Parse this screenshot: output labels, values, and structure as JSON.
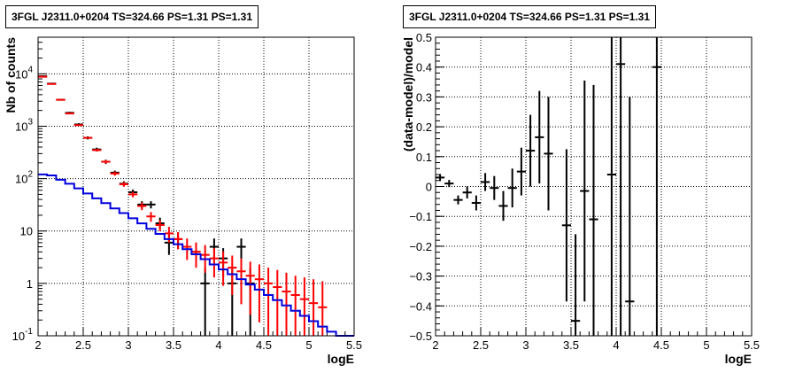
{
  "chart_data": [
    {
      "type": "scatter",
      "title": "3FGL J2311.0+0204 TS=324.66 PS=1.31 PS=1.31",
      "xlabel": "logE",
      "ylabel": "Nb of counts",
      "xlim": [
        2,
        5.5
      ],
      "ylim": [
        0.1,
        50000
      ],
      "yscale": "log",
      "grid": true,
      "x_ticks": [
        "2",
        "2.5",
        "3",
        "3.5",
        "4",
        "4.5",
        "5",
        "5.5"
      ],
      "y_ticks": [
        {
          "value": 0.1,
          "base": "10",
          "exp": "-1"
        },
        {
          "value": 1,
          "base": "1",
          "exp": ""
        },
        {
          "value": 10,
          "base": "10",
          "exp": ""
        },
        {
          "value": 100,
          "base": "10",
          "exp": "2"
        },
        {
          "value": 1000,
          "base": "10",
          "exp": "3"
        },
        {
          "value": 10000,
          "base": "10",
          "exp": "4"
        }
      ],
      "bin_width": 0.1,
      "series": [
        {
          "color": "#000000",
          "kind": "data-points",
          "points": [
            {
              "x": 2.05,
              "y": 9000,
              "lo": 8800,
              "hi": 9200
            },
            {
              "x": 2.15,
              "y": 6500,
              "lo": 6350,
              "hi": 6650
            },
            {
              "x": 2.25,
              "y": 3200,
              "lo": 3100,
              "hi": 3300
            },
            {
              "x": 2.35,
              "y": 1800,
              "lo": 1720,
              "hi": 1880
            },
            {
              "x": 2.45,
              "y": 1080,
              "lo": 1020,
              "hi": 1140
            },
            {
              "x": 2.55,
              "y": 600,
              "lo": 560,
              "hi": 640
            },
            {
              "x": 2.65,
              "y": 360,
              "lo": 330,
              "hi": 390
            },
            {
              "x": 2.75,
              "y": 210,
              "lo": 190,
              "hi": 230
            },
            {
              "x": 2.85,
              "y": 130,
              "lo": 118,
              "hi": 142
            },
            {
              "x": 2.95,
              "y": 80,
              "lo": 71,
              "hi": 89
            },
            {
              "x": 3.05,
              "y": 55,
              "lo": 48,
              "hi": 62
            },
            {
              "x": 3.15,
              "y": 32,
              "lo": 27,
              "hi": 37
            },
            {
              "x": 3.25,
              "y": 32,
              "lo": 27,
              "hi": 37
            },
            {
              "x": 3.35,
              "y": 14,
              "lo": 11,
              "hi": 18
            },
            {
              "x": 3.45,
              "y": 6,
              "lo": 3.5,
              "hi": 8.5
            },
            {
              "x": 3.55,
              "y": 7,
              "lo": 4.5,
              "hi": 9.5
            },
            {
              "x": 3.75,
              "y": 4,
              "lo": 2.0,
              "hi": 6.0
            },
            {
              "x": 3.85,
              "y": 1,
              "lo": 0.1,
              "hi": 2.0
            },
            {
              "x": 3.95,
              "y": 5,
              "lo": 2.8,
              "hi": 7.2
            },
            {
              "x": 4.05,
              "y": 3,
              "lo": 1.3,
              "hi": 4.7
            },
            {
              "x": 4.15,
              "y": 1,
              "lo": 0.1,
              "hi": 2.0
            },
            {
              "x": 4.25,
              "y": 5,
              "lo": 2.8,
              "hi": 7.2
            },
            {
              "x": 4.35,
              "y": 1,
              "lo": 0.1,
              "hi": 2.0
            }
          ]
        },
        {
          "color": "#ff0000",
          "kind": "model-points",
          "points": [
            {
              "x": 2.05,
              "y": 8800,
              "lo": 8600,
              "hi": 9000
            },
            {
              "x": 2.15,
              "y": 6400,
              "lo": 6300,
              "hi": 6500
            },
            {
              "x": 2.25,
              "y": 3200,
              "lo": 3150,
              "hi": 3250
            },
            {
              "x": 2.35,
              "y": 1750,
              "lo": 1700,
              "hi": 1800
            },
            {
              "x": 2.45,
              "y": 1050,
              "lo": 1020,
              "hi": 1080
            },
            {
              "x": 2.55,
              "y": 600,
              "lo": 580,
              "hi": 620
            },
            {
              "x": 2.65,
              "y": 350,
              "lo": 330,
              "hi": 370
            },
            {
              "x": 2.75,
              "y": 210,
              "lo": 195,
              "hi": 225
            },
            {
              "x": 2.85,
              "y": 125,
              "lo": 114,
              "hi": 136
            },
            {
              "x": 2.95,
              "y": 78,
              "lo": 70,
              "hi": 86
            },
            {
              "x": 3.05,
              "y": 50,
              "lo": 44,
              "hi": 56
            },
            {
              "x": 3.15,
              "y": 30,
              "lo": 25,
              "hi": 35
            },
            {
              "x": 3.25,
              "y": 19,
              "lo": 15,
              "hi": 23
            },
            {
              "x": 3.35,
              "y": 13,
              "lo": 10,
              "hi": 16
            },
            {
              "x": 3.45,
              "y": 9,
              "lo": 6,
              "hi": 12
            },
            {
              "x": 3.55,
              "y": 7,
              "lo": 4.5,
              "hi": 9.5
            },
            {
              "x": 3.65,
              "y": 5,
              "lo": 2.8,
              "hi": 7.2
            },
            {
              "x": 3.75,
              "y": 4,
              "lo": 2.0,
              "hi": 6.0
            },
            {
              "x": 3.85,
              "y": 3.5,
              "lo": 1.6,
              "hi": 5.4
            },
            {
              "x": 3.95,
              "y": 3,
              "lo": 1.3,
              "hi": 4.7
            },
            {
              "x": 4.05,
              "y": 2.5,
              "lo": 0.9,
              "hi": 4.1
            },
            {
              "x": 4.15,
              "y": 2,
              "lo": 0.6,
              "hi": 3.4
            },
            {
              "x": 4.25,
              "y": 1.7,
              "lo": 0.4,
              "hi": 3.0
            },
            {
              "x": 4.35,
              "y": 1.4,
              "lo": 0.25,
              "hi": 2.6
            },
            {
              "x": 4.45,
              "y": 1.2,
              "lo": 0.18,
              "hi": 2.3
            },
            {
              "x": 4.55,
              "y": 1.0,
              "lo": 0.1,
              "hi": 2.0
            },
            {
              "x": 4.65,
              "y": 0.85,
              "lo": 0.1,
              "hi": 1.8
            },
            {
              "x": 4.75,
              "y": 0.7,
              "lo": 0.1,
              "hi": 1.6
            },
            {
              "x": 4.85,
              "y": 0.6,
              "lo": 0.1,
              "hi": 1.4
            },
            {
              "x": 4.95,
              "y": 0.5,
              "lo": 0.1,
              "hi": 1.3
            },
            {
              "x": 5.05,
              "y": 0.42,
              "lo": 0.1,
              "hi": 1.2
            },
            {
              "x": 5.15,
              "y": 0.35,
              "lo": 0.1,
              "hi": 1.1
            }
          ]
        },
        {
          "color": "#0000dd",
          "kind": "step-histogram",
          "edges": [
            2.0,
            2.1,
            2.2,
            2.3,
            2.4,
            2.5,
            2.6,
            2.7,
            2.8,
            2.9,
            3.0,
            3.1,
            3.2,
            3.3,
            3.4,
            3.5,
            3.6,
            3.7,
            3.8,
            3.9,
            4.0,
            4.1,
            4.2,
            4.3,
            4.4,
            4.5,
            4.6,
            4.7,
            4.8,
            4.9,
            5.0,
            5.1,
            5.2,
            5.3,
            5.4,
            5.5
          ],
          "values": [
            120,
            115,
            95,
            80,
            65,
            52,
            42,
            34,
            27,
            22,
            17.5,
            14,
            11,
            8.8,
            7,
            5.6,
            4.5,
            3.6,
            2.9,
            2.3,
            1.85,
            1.5,
            1.2,
            0.95,
            0.76,
            0.6,
            0.48,
            0.38,
            0.3,
            0.24,
            0.19,
            0.15,
            0.12,
            0.1,
            0.1
          ]
        }
      ]
    },
    {
      "type": "scatter",
      "title": "3FGL J2311.0+0204 TS=324.66 PS=1.31 PS=1.31",
      "xlabel": "logE",
      "ylabel": "(data-model)/model",
      "xlim": [
        2,
        5.5
      ],
      "ylim": [
        -0.5,
        0.5
      ],
      "grid": true,
      "x_ticks": [
        "2",
        "2.5",
        "3",
        "3.5",
        "4",
        "4.5",
        "5",
        "5.5"
      ],
      "y_ticks": [
        "-0.5",
        "-0.4",
        "-0.3",
        "-0.2",
        "-0.1",
        "0",
        "0.1",
        "0.2",
        "0.3",
        "0.4",
        "0.5"
      ],
      "bin_width": 0.1,
      "series": [
        {
          "color": "#000000",
          "kind": "residuals",
          "points": [
            {
              "x": 2.05,
              "y": 0.03,
              "lo": 0.018,
              "hi": 0.042
            },
            {
              "x": 2.15,
              "y": 0.01,
              "lo": -0.002,
              "hi": 0.022
            },
            {
              "x": 2.25,
              "y": -0.045,
              "lo": -0.06,
              "hi": -0.03
            },
            {
              "x": 2.35,
              "y": -0.02,
              "lo": -0.04,
              "hi": 0.0
            },
            {
              "x": 2.45,
              "y": -0.055,
              "lo": -0.08,
              "hi": -0.03
            },
            {
              "x": 2.55,
              "y": 0.015,
              "lo": -0.015,
              "hi": 0.045
            },
            {
              "x": 2.65,
              "y": -0.005,
              "lo": -0.045,
              "hi": 0.035
            },
            {
              "x": 2.75,
              "y": -0.065,
              "lo": -0.115,
              "hi": -0.015
            },
            {
              "x": 2.85,
              "y": -0.005,
              "lo": -0.07,
              "hi": 0.06
            },
            {
              "x": 2.95,
              "y": 0.05,
              "lo": -0.03,
              "hi": 0.13
            },
            {
              "x": 3.05,
              "y": 0.12,
              "lo": 0.0,
              "hi": 0.24
            },
            {
              "x": 3.15,
              "y": 0.165,
              "lo": 0.01,
              "hi": 0.32
            },
            {
              "x": 3.25,
              "y": 0.11,
              "lo": -0.08,
              "hi": 0.3
            },
            {
              "x": 3.45,
              "y": -0.13,
              "lo": -0.385,
              "hi": 0.125
            },
            {
              "x": 3.55,
              "y": -0.45,
              "lo": -0.5,
              "hi": -0.16
            },
            {
              "x": 3.65,
              "y": -0.015,
              "lo": -0.385,
              "hi": 0.355
            },
            {
              "x": 3.75,
              "y": -0.11,
              "lo": -0.5,
              "hi": 0.34
            },
            {
              "x": 3.95,
              "y": 0.04,
              "lo": -0.5,
              "hi": 0.5
            },
            {
              "x": 4.05,
              "y": 0.41,
              "lo": -0.5,
              "hi": 0.5
            },
            {
              "x": 4.15,
              "y": -0.385,
              "lo": -0.5,
              "hi": 0.3
            },
            {
              "x": 4.45,
              "y": 0.4,
              "lo": -0.5,
              "hi": 0.5
            }
          ]
        }
      ]
    }
  ]
}
